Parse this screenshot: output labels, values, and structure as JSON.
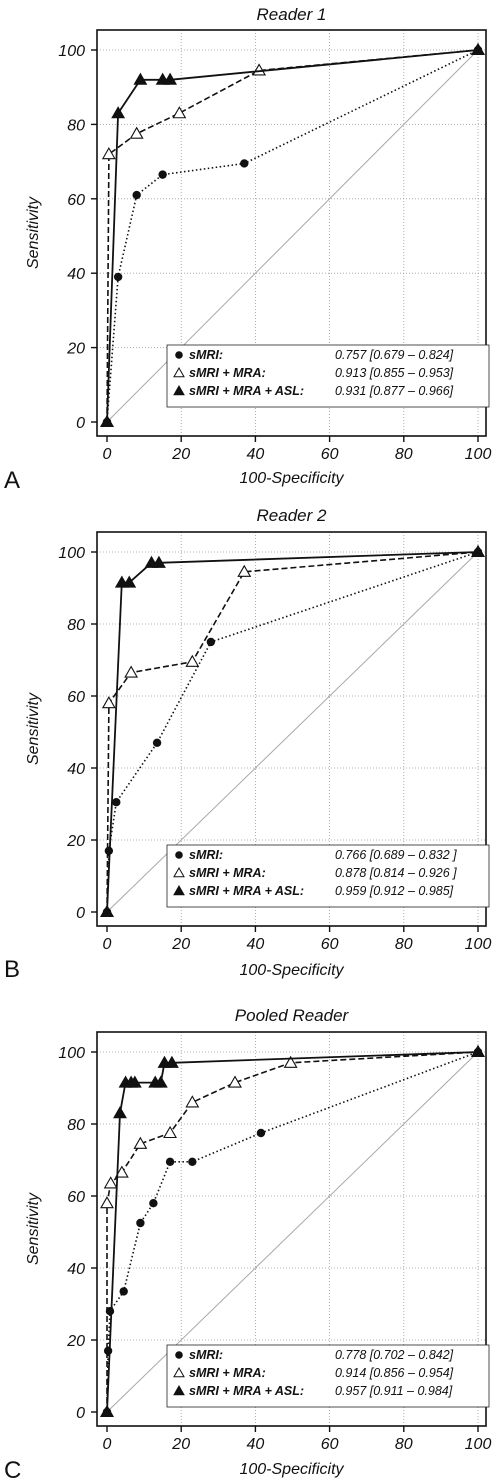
{
  "figure": {
    "letters": [
      "A",
      "B",
      "C"
    ]
  },
  "chart_data": [
    {
      "type": "line",
      "panel": "A",
      "title": "Reader 1",
      "xlabel": "100-Specificity",
      "ylabel": "Sensitivity",
      "xlim": [
        0,
        100
      ],
      "ylim": [
        0,
        100
      ],
      "x_ticks": [
        "0",
        "20",
        "40",
        "60",
        "80",
        "100"
      ],
      "y_ticks": [
        "0",
        "20",
        "40",
        "60",
        "80",
        "100"
      ],
      "grid": true,
      "legend_position": "bottom-right",
      "reference_line": true,
      "series": [
        {
          "name": "sMRI:",
          "auc": "0.757 [0.679 – 0.824]",
          "marker": "circle",
          "line": "dotted",
          "x": [
            0,
            3,
            8,
            15,
            37,
            100
          ],
          "y": [
            0,
            39,
            61,
            66.5,
            69.5,
            100
          ]
        },
        {
          "name": "sMRI + MRA:",
          "auc": "0.913 [0.855 – 0.953]",
          "marker": "open-triangle",
          "line": "dashed",
          "x": [
            0,
            0.5,
            8,
            19.5,
            41,
            100
          ],
          "y": [
            0,
            72,
            77.5,
            83,
            94.5,
            100
          ]
        },
        {
          "name": "sMRI + MRA + ASL:",
          "auc": "0.931 [0.877 – 0.966]",
          "marker": "filled-triangle",
          "line": "solid",
          "x": [
            0,
            3,
            9,
            15,
            17,
            100
          ],
          "y": [
            0,
            83,
            92,
            92,
            92,
            100
          ]
        }
      ]
    },
    {
      "type": "line",
      "panel": "B",
      "title": "Reader 2",
      "xlabel": "100-Specificity",
      "ylabel": "Sensitivity",
      "xlim": [
        0,
        100
      ],
      "ylim": [
        0,
        100
      ],
      "x_ticks": [
        "0",
        "20",
        "40",
        "60",
        "80",
        "100"
      ],
      "y_ticks": [
        "0",
        "20",
        "40",
        "60",
        "80",
        "100"
      ],
      "grid": true,
      "legend_position": "bottom-right",
      "reference_line": true,
      "series": [
        {
          "name": "sMRI:",
          "auc": "0.766 [0.689 – 0.832 ]",
          "marker": "circle",
          "line": "dotted",
          "x": [
            0,
            0.5,
            2.5,
            13.5,
            28,
            100
          ],
          "y": [
            0,
            17,
            30.5,
            47,
            75,
            100
          ]
        },
        {
          "name": "sMRI + MRA:",
          "auc": "0.878 [0.814 – 0.926 ]",
          "marker": "open-triangle",
          "line": "dashed",
          "x": [
            0,
            0.5,
            6.5,
            23,
            37,
            100
          ],
          "y": [
            0,
            58,
            66.5,
            69.5,
            94.5,
            100
          ]
        },
        {
          "name": "sMRI + MRA + ASL:",
          "auc": "0.959  [0.912 – 0.985]",
          "marker": "filled-triangle",
          "line": "solid",
          "x": [
            0,
            4,
            6,
            12,
            14,
            100
          ],
          "y": [
            0,
            91.5,
            91.5,
            97,
            97,
            100
          ]
        }
      ]
    },
    {
      "type": "line",
      "panel": "C",
      "title": "Pooled Reader",
      "xlabel": "100-Specificity",
      "ylabel": "Sensitivity",
      "xlim": [
        0,
        100
      ],
      "ylim": [
        0,
        100
      ],
      "x_ticks": [
        "0",
        "20",
        "40",
        "60",
        "80",
        "100"
      ],
      "y_ticks": [
        "0",
        "20",
        "40",
        "60",
        "80",
        "100"
      ],
      "grid": true,
      "legend_position": "bottom-right",
      "reference_line": true,
      "series": [
        {
          "name": "sMRI:",
          "auc": "0.778 [0.702 – 0.842]",
          "marker": "circle",
          "line": "dotted",
          "x": [
            0,
            0.3,
            0.8,
            4.5,
            9,
            12.5,
            17,
            23,
            41.5,
            100
          ],
          "y": [
            0,
            17,
            28,
            33.5,
            52.5,
            58,
            69.5,
            69.5,
            77.5,
            100
          ]
        },
        {
          "name": "sMRI + MRA:",
          "auc": "0.914 [0.856 – 0.954]",
          "marker": "open-triangle",
          "line": "dashed",
          "x": [
            0,
            0,
            1,
            4,
            9,
            17,
            23,
            34.5,
            49.5,
            100
          ],
          "y": [
            0,
            58,
            63.5,
            66.5,
            74.5,
            77.5,
            86,
            91.5,
            97,
            100
          ]
        },
        {
          "name": "sMRI + MRA + ASL:",
          "auc": "0.957  [0.911 – 0.984]",
          "marker": "filled-triangle",
          "line": "solid",
          "x": [
            0,
            3.5,
            5,
            6.5,
            7.5,
            13,
            14.5,
            15.5,
            17.5,
            100
          ],
          "y": [
            0,
            83,
            91.5,
            91.5,
            91.5,
            91.5,
            91.5,
            97,
            97,
            100
          ]
        }
      ]
    }
  ]
}
